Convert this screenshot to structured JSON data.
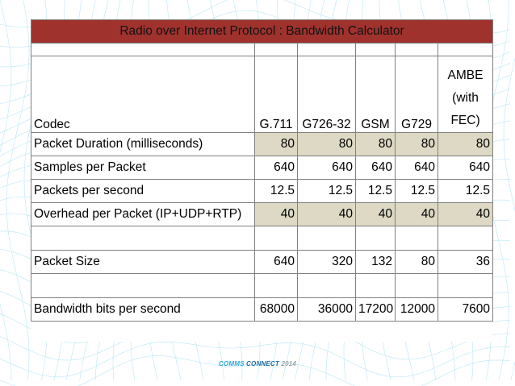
{
  "title": "Radio over Internet Protocol : Bandwidth Calculator",
  "headers": {
    "codec": "Codec",
    "cols": [
      "G.711",
      "G726-32",
      "GSM",
      "G729"
    ],
    "last": [
      "AMBE",
      "(with",
      "FEC)"
    ]
  },
  "rows": [
    {
      "label": "Packet Duration (milliseconds)",
      "values": [
        "80",
        "80",
        "80",
        "80",
        "80"
      ]
    },
    {
      "label": "Samples per Packet",
      "values": [
        "640",
        "640",
        "640",
        "640",
        "640"
      ]
    },
    {
      "label": "Packets per second",
      "values": [
        "12.5",
        "12.5",
        "12.5",
        "12.5",
        "12.5"
      ]
    },
    {
      "label": "Overhead per Packet (IP+UDP+RTP)",
      "values": [
        "40",
        "40",
        "40",
        "40",
        "40"
      ]
    },
    {
      "label": "Packet Size",
      "values": [
        "640",
        "320",
        "132",
        "80",
        "36"
      ]
    },
    {
      "label": "Bandwidth bits per second",
      "values": [
        "68000",
        "36000",
        "17200",
        "12000",
        "7600"
      ]
    }
  ],
  "footer": {
    "part1": "COMMS",
    "part2": "CONNECT",
    "part3": "2014"
  },
  "colors": {
    "title_bg": "#a0322e",
    "shaded_bg": "#ddd9c4",
    "wave": "#7fd3ec"
  }
}
